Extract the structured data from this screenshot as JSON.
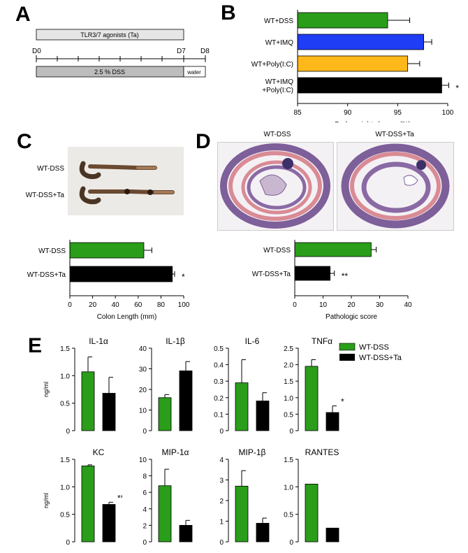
{
  "panel_letters": [
    "A",
    "B",
    "C",
    "D",
    "E"
  ],
  "colors": {
    "green": "#2a9d1a",
    "blue": "#1f3df5",
    "orange": "#ffb81a",
    "black": "#000000",
    "gray_bar": "#bdbdbd",
    "light_bar": "#e6e6e6",
    "photo_bg": "#eceae6",
    "tissue_pink": "#d98b95",
    "tissue_purple": "#7d5f9a"
  },
  "panel_a": {
    "agonist_label": "TLR3/7 agonists (Ta)",
    "dss_label": "2.5 % DSS",
    "water_label": "water",
    "day_labels": [
      "D0",
      "D7",
      "D8"
    ]
  },
  "panel_c": {
    "photo_labels": [
      "WT-DSS",
      "WT-DSS+Ta"
    ]
  },
  "panel_d": {
    "image_labels": [
      "WT-DSS",
      "WT-DSS+Ta"
    ]
  },
  "panel_e": {
    "legend": [
      "WT-DSS",
      "WT-DSS+Ta"
    ],
    "ylabel": "ng/ml"
  },
  "chart_data": [
    {
      "id": "B",
      "type": "bar",
      "orientation": "horizontal",
      "categories": [
        "WT+DSS",
        "WT+IMQ",
        "WT+Poly(I:C)",
        "WT+IMQ\n+Poly(I:C)"
      ],
      "values": [
        94,
        97.6,
        96,
        99.4
      ],
      "errors": [
        2.2,
        0.8,
        1.2,
        0.7
      ],
      "bar_colors": [
        "#2a9d1a",
        "#1f3df5",
        "#ffb81a",
        "#000000"
      ],
      "annotations": [
        "",
        "",
        "",
        "*"
      ],
      "xlabel": "Body weight change (%)",
      "xlim": [
        85,
        100
      ],
      "xticks": [
        85,
        90,
        95,
        100
      ]
    },
    {
      "id": "C",
      "type": "bar",
      "orientation": "horizontal",
      "categories": [
        "WT-DSS",
        "WT-DSS+Ta"
      ],
      "values": [
        65,
        90
      ],
      "errors": [
        7,
        2
      ],
      "bar_colors": [
        "#2a9d1a",
        "#000000"
      ],
      "annotations": [
        "",
        "*"
      ],
      "xlabel": "Colon  Length (mm)",
      "xlim": [
        0,
        100
      ],
      "xticks": [
        0,
        20,
        40,
        60,
        80,
        100
      ]
    },
    {
      "id": "D",
      "type": "bar",
      "orientation": "horizontal",
      "categories": [
        "WT-DSS",
        "WT-DSS+Ta"
      ],
      "values": [
        27,
        12.5
      ],
      "errors": [
        1.8,
        1.5
      ],
      "bar_colors": [
        "#2a9d1a",
        "#000000"
      ],
      "annotations": [
        "",
        "**"
      ],
      "xlabel": "Pathologic score",
      "xlim": [
        0,
        40
      ],
      "xticks": [
        0,
        10,
        20,
        30,
        40
      ]
    },
    {
      "id": "E-IL-1a",
      "type": "bar",
      "title": "IL-1α",
      "ylabel": "ng/ml",
      "ylim": [
        0,
        1.5
      ],
      "yticks": [
        "0",
        "0.5",
        "1.0",
        "1.5"
      ],
      "values": [
        1.07,
        0.68
      ],
      "errors": [
        0.27,
        0.29
      ],
      "annotation": ""
    },
    {
      "id": "E-IL-1b",
      "type": "bar",
      "title": "IL-1β",
      "ylim": [
        0,
        40
      ],
      "yticks": [
        "0",
        "10",
        "20",
        "30",
        "40"
      ],
      "values": [
        16,
        29
      ],
      "errors": [
        1.5,
        4.5
      ],
      "annotation": ""
    },
    {
      "id": "E-IL-6",
      "type": "bar",
      "title": "IL-6",
      "ylim": [
        0,
        0.5
      ],
      "yticks": [
        "0",
        "0.1",
        "0.2",
        "0.3",
        "0.4",
        "0.5"
      ],
      "values": [
        0.29,
        0.18
      ],
      "errors": [
        0.14,
        0.05
      ],
      "annotation": ""
    },
    {
      "id": "E-TNFa",
      "type": "bar",
      "title": "TNFα",
      "ylim": [
        0,
        2.5
      ],
      "yticks": [
        "0",
        "0.5",
        "1.0",
        "1.5",
        "2.0",
        "2.5"
      ],
      "values": [
        1.95,
        0.55
      ],
      "errors": [
        0.2,
        0.2
      ],
      "annotation": "*"
    },
    {
      "id": "E-KC",
      "type": "bar",
      "title": "KC",
      "ylabel": "ng/ml",
      "ylim": [
        0,
        1.5
      ],
      "yticks": [
        "0",
        "0.5",
        "1.0",
        "1.5"
      ],
      "values": [
        1.38,
        0.68
      ],
      "errors": [
        0.02,
        0.04
      ],
      "annotation": "**"
    },
    {
      "id": "E-MIP-1a",
      "type": "bar",
      "title": "MIP-1α",
      "ylim": [
        0,
        10
      ],
      "yticks": [
        "0",
        "2",
        "4",
        "6",
        "8",
        "10"
      ],
      "values": [
        6.8,
        2.0
      ],
      "errors": [
        2.0,
        0.6
      ],
      "annotation": ""
    },
    {
      "id": "E-MIP-1b",
      "type": "bar",
      "title": "MIP-1β",
      "ylim": [
        0,
        4
      ],
      "yticks": [
        "0",
        "1",
        "2",
        "3",
        "4"
      ],
      "values": [
        2.7,
        0.9
      ],
      "errors": [
        0.75,
        0.25
      ],
      "annotation": ""
    },
    {
      "id": "E-RANTES",
      "type": "bar",
      "title": "RANTES",
      "ylim": [
        0,
        1.5
      ],
      "yticks": [
        "0",
        "0.5",
        "1.0",
        "1.5"
      ],
      "values": [
        1.05,
        0.25
      ],
      "errors": [
        0,
        0
      ],
      "annotation": ""
    }
  ]
}
